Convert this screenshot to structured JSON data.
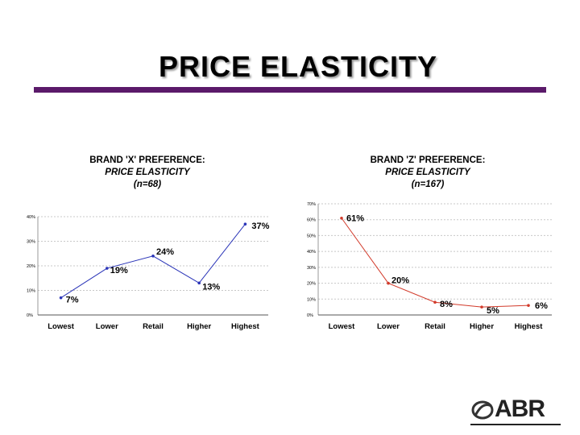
{
  "slide": {
    "title": "PRICE ELASTICITY"
  },
  "logo": {
    "text": "ABR"
  },
  "chart_data": [
    {
      "type": "line",
      "title": "BRAND 'X' PREFERENCE:",
      "subtitle": "PRICE ELASTICITY",
      "n_label": "(n=68)",
      "categories": [
        "Lowest",
        "Lower",
        "Retail",
        "Higher",
        "Highest"
      ],
      "y_ticks": [
        "0%",
        "10%",
        "20%",
        "30%",
        "40%"
      ],
      "ylim": [
        0,
        40
      ],
      "series": [
        {
          "values": [
            7,
            19,
            24,
            13,
            37
          ],
          "labels": [
            "7%",
            "19%",
            "24%",
            "13%",
            "37%"
          ]
        }
      ],
      "color": "#2b35b8",
      "grid": true
    },
    {
      "type": "line",
      "title": "BRAND 'Z' PREFERENCE:",
      "subtitle": "PRICE ELASTICITY",
      "n_label": "(n=167)",
      "categories": [
        "Lowest",
        "Lower",
        "Retail",
        "Higher",
        "Highest"
      ],
      "y_ticks": [
        "0%",
        "10%",
        "20%",
        "30%",
        "40%",
        "50%",
        "60%",
        "70%"
      ],
      "ylim": [
        0,
        70
      ],
      "series": [
        {
          "values": [
            61,
            20,
            8,
            5,
            6
          ],
          "labels": [
            "61%",
            "20%",
            "8%",
            "5%",
            "6%"
          ]
        }
      ],
      "color": "#d23a2a",
      "grid": true
    }
  ]
}
